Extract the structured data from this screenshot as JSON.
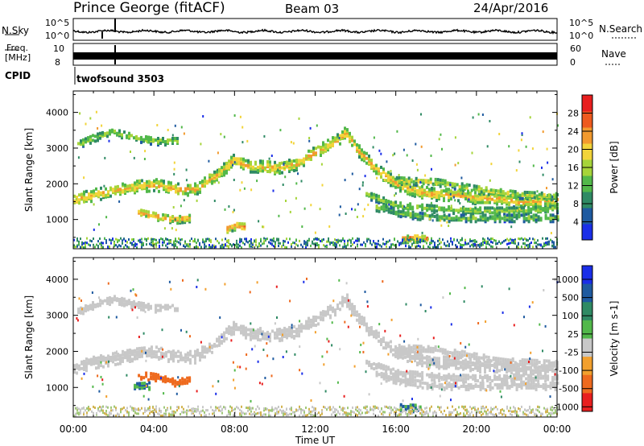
{
  "header": {
    "station": "Prince George (fitACF)",
    "beam": "Beam 03",
    "date": "24/Apr/2016"
  },
  "strip_labels": {
    "nsky": "N.Sky",
    "nsearch": "N.Search",
    "freq_line1": "Freq.",
    "freq_line2": "[MHz]",
    "nave": "Nave",
    "cpid": "CPID",
    "cpid_value": "twofsound 3503"
  },
  "strip_ticks": {
    "nsky_top": "10^5",
    "nsky_bottom": "10^0",
    "nsearch_top": "10^5",
    "nsearch_bottom": "10^0",
    "freq_top": "10",
    "freq_bottom": "8",
    "nave_top": "60",
    "nave_bottom": "0"
  },
  "colors": {
    "power_scale": [
      "#1a2ee8",
      "#1e5aa0",
      "#2f8a64",
      "#52b84a",
      "#a6d43a",
      "#f2d43a",
      "#f29a2e",
      "#ee5a1e",
      "#e81e1e"
    ],
    "velocity_scale": [
      "#1a2ee8",
      "#1e5aa0",
      "#2f8a64",
      "#52b84a",
      "#c8c8c8",
      "#f2a02e",
      "#ee6a1e",
      "#e81e1e"
    ]
  },
  "chart_data": [
    {
      "type": "heatmap",
      "name": "power-panel",
      "ylabel": "Slant Range [km]",
      "xlabel": "Time UT",
      "x_ticks": [
        "00:00",
        "04:00",
        "08:00",
        "12:00",
        "16:00",
        "20:00",
        "00:00"
      ],
      "x_range_hours": [
        0,
        24
      ],
      "ylim": [
        180,
        4600
      ],
      "y_ticks": [
        1000,
        2000,
        3000,
        4000
      ],
      "colorbar": {
        "label": "Power [dB]",
        "ticks": [
          4,
          8,
          12,
          16,
          20,
          24,
          28
        ],
        "range": [
          0,
          32
        ]
      },
      "bands": [
        {
          "name": "main",
          "power_db": 22,
          "points": [
            [
              0.0,
              1550
            ],
            [
              1.0,
              1700
            ],
            [
              2.0,
              1800
            ],
            [
              3.0,
              1920
            ],
            [
              4.0,
              1980
            ],
            [
              5.0,
              1850
            ],
            [
              6.0,
              1850
            ],
            [
              7.0,
              2200
            ],
            [
              8.0,
              2700
            ],
            [
              8.5,
              2500
            ],
            [
              9.0,
              2500
            ],
            [
              10.0,
              2450
            ],
            [
              11.0,
              2550
            ],
            [
              12.0,
              2900
            ],
            [
              13.0,
              3200
            ],
            [
              13.5,
              3450
            ],
            [
              14.0,
              3000
            ],
            [
              15.0,
              2400
            ],
            [
              16.0,
              2000
            ],
            [
              17.0,
              1800
            ],
            [
              18.0,
              1700
            ],
            [
              19.0,
              1700
            ],
            [
              20.0,
              1600
            ],
            [
              21.0,
              1600
            ],
            [
              22.0,
              1500
            ],
            [
              23.0,
              1500
            ],
            [
              24.0,
              1550
            ]
          ]
        },
        {
          "name": "upper-early",
          "power_db": 16,
          "points": [
            [
              0.2,
              3100
            ],
            [
              1.0,
              3300
            ],
            [
              2.0,
              3450
            ],
            [
              3.0,
              3300
            ],
            [
              4.0,
              3200
            ],
            [
              5.2,
              3200
            ]
          ]
        },
        {
          "name": "lower-early",
          "power_db": 24,
          "points": [
            [
              3.2,
              1200
            ],
            [
              4.0,
              1100
            ],
            [
              5.0,
              1000
            ],
            [
              5.8,
              1050
            ]
          ]
        },
        {
          "name": "patch-morning",
          "power_db": 26,
          "points": [
            [
              7.6,
              750
            ],
            [
              8.0,
              820
            ],
            [
              8.5,
              800
            ]
          ]
        },
        {
          "name": "evening-upper",
          "power_db": 18,
          "points": [
            [
              16.0,
              2100
            ],
            [
              18.0,
              2050
            ],
            [
              20.0,
              1850
            ],
            [
              22.0,
              1700
            ],
            [
              24.0,
              1650
            ]
          ]
        },
        {
          "name": "evening-mid",
          "power_db": 16,
          "points": [
            [
              14.5,
              1700
            ],
            [
              16.0,
              1400
            ],
            [
              18.0,
              1300
            ],
            [
              20.0,
              1250
            ],
            [
              22.0,
              1250
            ],
            [
              24.0,
              1300
            ]
          ]
        },
        {
          "name": "evening-low",
          "power_db": 14,
          "points": [
            [
              15.0,
              1350
            ],
            [
              16.5,
              1150
            ],
            [
              18.0,
              1050
            ],
            [
              20.0,
              1050
            ],
            [
              22.0,
              1050
            ],
            [
              24.0,
              1050
            ]
          ]
        },
        {
          "name": "ground-scatter",
          "power_db": 26,
          "points": [
            [
              16.3,
              460
            ],
            [
              17.0,
              470
            ],
            [
              17.5,
              450
            ]
          ]
        }
      ]
    },
    {
      "type": "heatmap",
      "name": "velocity-panel",
      "ylabel": "Slant Range [km]",
      "xlabel": "Time UT",
      "x_ticks": [
        "00:00",
        "04:00",
        "08:00",
        "12:00",
        "16:00",
        "20:00",
        "00:00"
      ],
      "x_range_hours": [
        0,
        24
      ],
      "ylim": [
        180,
        4600
      ],
      "y_ticks": [
        1000,
        2000,
        3000,
        4000
      ],
      "colorbar": {
        "label": "Velocity [m s-1]",
        "ticks": [
          1000,
          500,
          100,
          25,
          -25,
          -100,
          -500,
          -1000
        ]
      },
      "bands": [
        {
          "name": "main",
          "velocity": 0,
          "points": [
            [
              0.0,
              1550
            ],
            [
              1.0,
              1700
            ],
            [
              2.0,
              1800
            ],
            [
              3.0,
              1920
            ],
            [
              4.0,
              1980
            ],
            [
              5.0,
              1850
            ],
            [
              6.0,
              1850
            ],
            [
              7.0,
              2200
            ],
            [
              8.0,
              2700
            ],
            [
              8.5,
              2500
            ],
            [
              9.0,
              2500
            ],
            [
              10.0,
              2450
            ],
            [
              11.0,
              2550
            ],
            [
              12.0,
              2900
            ],
            [
              13.0,
              3200
            ],
            [
              13.5,
              3450
            ],
            [
              14.0,
              3000
            ],
            [
              15.0,
              2400
            ],
            [
              16.0,
              2000
            ],
            [
              17.0,
              1800
            ],
            [
              18.0,
              1700
            ],
            [
              19.0,
              1700
            ],
            [
              20.0,
              1600
            ],
            [
              21.0,
              1600
            ],
            [
              22.0,
              1500
            ],
            [
              23.0,
              1500
            ],
            [
              24.0,
              1550
            ]
          ]
        },
        {
          "name": "upper-early",
          "velocity": 0,
          "points": [
            [
              0.2,
              3100
            ],
            [
              1.0,
              3300
            ],
            [
              2.0,
              3450
            ],
            [
              3.0,
              3300
            ],
            [
              4.0,
              3200
            ],
            [
              5.2,
              3200
            ]
          ]
        },
        {
          "name": "lower-early",
          "velocity": -300,
          "points": [
            [
              3.2,
              1350
            ],
            [
              4.0,
              1300
            ],
            [
              5.0,
              1150
            ],
            [
              5.8,
              1200
            ]
          ]
        },
        {
          "name": "evening-upper",
          "velocity": 0,
          "points": [
            [
              16.0,
              2100
            ],
            [
              18.0,
              2050
            ],
            [
              20.0,
              1850
            ],
            [
              22.0,
              1700
            ],
            [
              24.0,
              1650
            ]
          ]
        },
        {
          "name": "evening-mid",
          "velocity": 0,
          "points": [
            [
              14.5,
              1700
            ],
            [
              16.0,
              1400
            ],
            [
              18.0,
              1300
            ],
            [
              20.0,
              1250
            ],
            [
              22.0,
              1250
            ],
            [
              24.0,
              1300
            ]
          ]
        },
        {
          "name": "evening-low",
          "velocity": 0,
          "points": [
            [
              15.0,
              1350
            ],
            [
              16.5,
              1150
            ],
            [
              18.0,
              1050
            ],
            [
              20.0,
              1050
            ],
            [
              22.0,
              1050
            ],
            [
              24.0,
              1050
            ]
          ]
        },
        {
          "name": "green-patch-early",
          "velocity": 100,
          "points": [
            [
              3.0,
              1030
            ],
            [
              3.8,
              1060
            ]
          ]
        },
        {
          "name": "green-patch-late",
          "velocity": 100,
          "points": [
            [
              16.2,
              450
            ],
            [
              17.2,
              430
            ]
          ]
        }
      ]
    }
  ]
}
